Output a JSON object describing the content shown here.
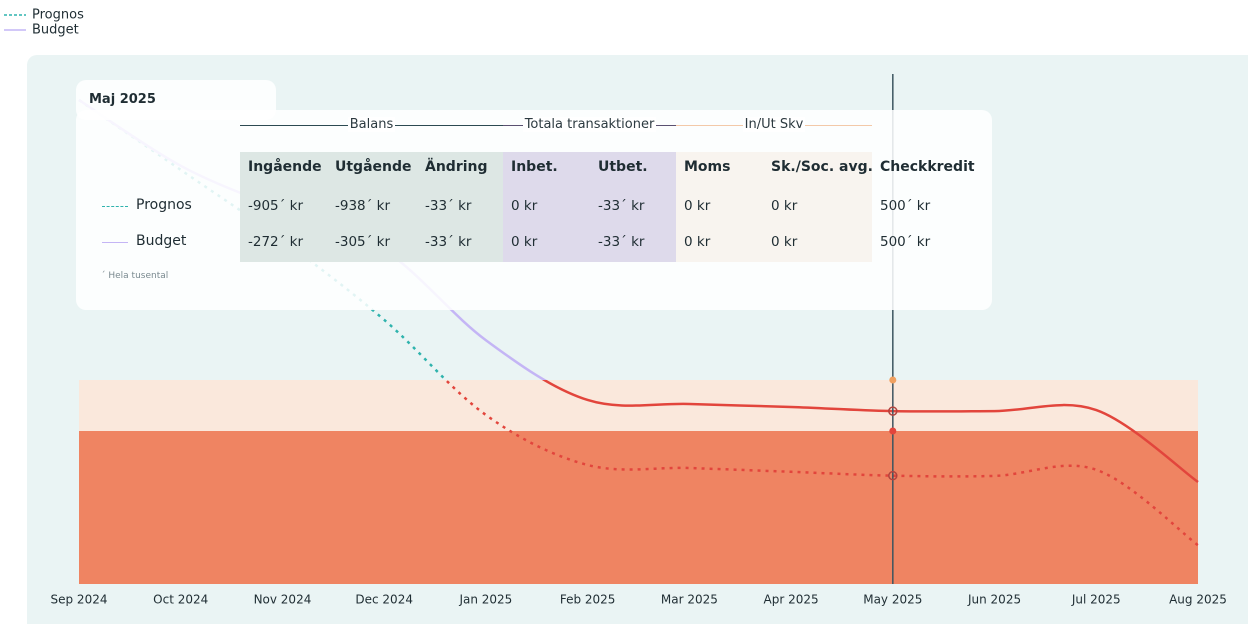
{
  "chart_data": {
    "type": "line",
    "x": [
      "Sep 2024",
      "Oct 2024",
      "Nov 2024",
      "Dec 2024",
      "Jan 2025",
      "Feb 2025",
      "Mar 2025",
      "Apr 2025",
      "May 2025",
      "Jun 2025",
      "Jul 2025",
      "Aug 2025"
    ],
    "series": [
      {
        "name": "Prognos",
        "color": "#2fb3ad",
        "dashed": true,
        "values": [
          2745,
          2060,
          1370,
          590,
          -343,
          -833,
          -863,
          -900,
          -938,
          -940,
          -880,
          -1620
        ]
      },
      {
        "name": "Budget",
        "color": "#c4b5f5",
        "dashed": false,
        "values": [
          2745,
          2100,
          1670,
          1275,
          390,
          -196,
          -235,
          -265,
          -305,
          -305,
          -295,
          -1000
        ]
      }
    ],
    "negative_color": "#e2453c",
    "ylim": [
      -2000,
      3000
    ],
    "bands": [
      {
        "from": 0,
        "to": -500,
        "color": "#fae8dc",
        "marker": "#f0a060"
      },
      {
        "from": -500,
        "to": -2000,
        "color": "#ef8462",
        "marker": "#e2453c"
      }
    ],
    "cursor_index": 8
  },
  "tooltip": {
    "title": "Maj 2025",
    "groups": [
      {
        "label": "Balans",
        "span": 3,
        "line": "#2c4a52",
        "background": "#dde7e4"
      },
      {
        "label": "Totala transaktioner",
        "span": 2,
        "line": "#5a5070",
        "background": "#dedaeb"
      },
      {
        "label": "In/Ut Skv",
        "span": 2,
        "line": "#f3c9a8",
        "background": "#f8f4ef"
      }
    ],
    "columns": [
      "Ingående",
      "Utgående",
      "Ändring",
      "Inbet.",
      "Utbet.",
      "Moms",
      "Sk./Soc. avg.",
      "Checkkredit"
    ],
    "rows": [
      [
        "-905´ kr",
        "-938´ kr",
        "-33´ kr",
        "0 kr",
        "-33´ kr",
        "0 kr",
        "0 kr",
        "500´ kr"
      ],
      [
        "-272´ kr",
        "-305´ kr",
        "-33´ kr",
        "0 kr",
        "-33´ kr",
        "0 kr",
        "0 kr",
        "500´ kr"
      ]
    ],
    "footnote": "´ Hela tusental"
  }
}
